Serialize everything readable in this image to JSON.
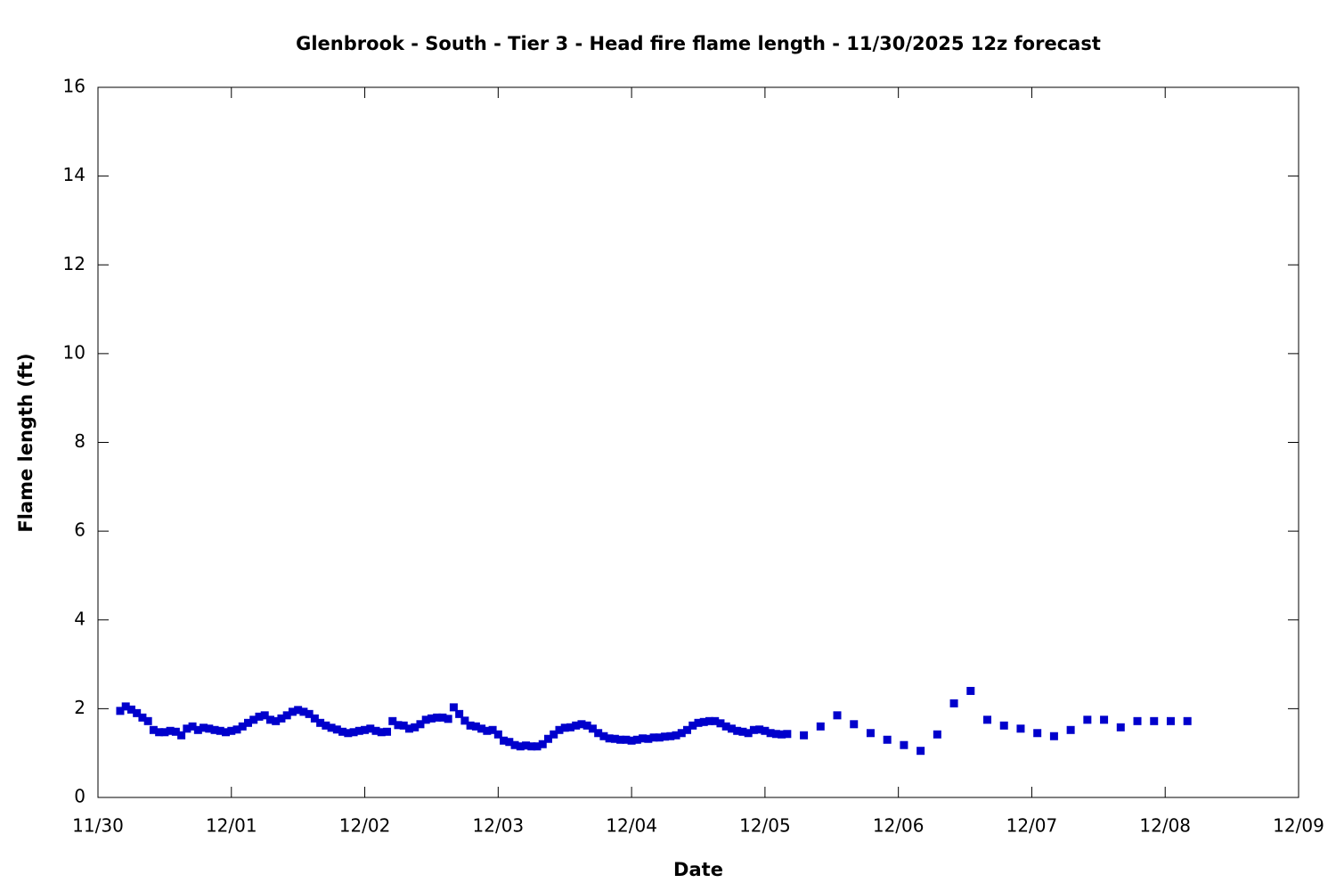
{
  "chart_data": {
    "type": "scatter",
    "title": "Glenbrook - South - Tier 3 - Head fire flame length - 11/30/2025 12z forecast",
    "x_label": "Date",
    "y_label": "Flame length (ft)",
    "color": "#0000cc",
    "x": [
      4,
      5,
      6,
      7,
      8,
      9,
      10,
      11,
      12,
      13,
      14,
      15,
      16,
      17,
      18,
      19,
      20,
      21,
      22,
      23,
      24,
      25,
      26,
      27,
      28,
      29,
      30,
      31,
      32,
      33,
      34,
      35,
      36,
      37,
      38,
      39,
      40,
      41,
      42,
      43,
      44,
      45,
      46,
      47,
      48,
      49,
      50,
      51,
      52,
      53,
      54,
      55,
      56,
      57,
      58,
      59,
      60,
      61,
      62,
      63,
      64,
      65,
      66,
      67,
      68,
      69,
      70,
      71,
      72,
      73,
      74,
      75,
      76,
      77,
      78,
      79,
      80,
      81,
      82,
      83,
      84,
      85,
      86,
      87,
      88,
      89,
      90,
      91,
      92,
      93,
      94,
      95,
      96,
      97,
      98,
      99,
      100,
      101,
      102,
      103,
      104,
      105,
      106,
      107,
      108,
      109,
      110,
      111,
      112,
      113,
      114,
      115,
      116,
      117,
      118,
      119,
      120,
      121,
      122,
      123,
      124,
      127,
      130,
      133,
      136,
      139,
      142,
      145,
      148,
      151,
      154,
      157,
      160,
      163,
      166,
      169,
      172,
      175,
      178,
      181,
      184,
      187,
      190,
      193,
      196
    ],
    "values": [
      1.95,
      2.05,
      1.98,
      1.9,
      1.8,
      1.72,
      1.52,
      1.47,
      1.47,
      1.5,
      1.48,
      1.4,
      1.55,
      1.6,
      1.52,
      1.57,
      1.55,
      1.52,
      1.5,
      1.47,
      1.5,
      1.53,
      1.6,
      1.68,
      1.75,
      1.82,
      1.85,
      1.75,
      1.72,
      1.78,
      1.85,
      1.93,
      1.97,
      1.93,
      1.88,
      1.78,
      1.68,
      1.62,
      1.57,
      1.53,
      1.48,
      1.45,
      1.47,
      1.5,
      1.52,
      1.55,
      1.5,
      1.47,
      1.48,
      1.72,
      1.63,
      1.62,
      1.55,
      1.58,
      1.65,
      1.75,
      1.78,
      1.8,
      1.8,
      1.77,
      2.03,
      1.88,
      1.73,
      1.62,
      1.6,
      1.55,
      1.5,
      1.52,
      1.42,
      1.28,
      1.25,
      1.18,
      1.15,
      1.17,
      1.15,
      1.15,
      1.2,
      1.32,
      1.42,
      1.52,
      1.57,
      1.58,
      1.62,
      1.65,
      1.62,
      1.55,
      1.45,
      1.38,
      1.33,
      1.32,
      1.3,
      1.3,
      1.28,
      1.3,
      1.33,
      1.32,
      1.35,
      1.35,
      1.37,
      1.38,
      1.4,
      1.45,
      1.52,
      1.62,
      1.68,
      1.7,
      1.72,
      1.72,
      1.67,
      1.6,
      1.55,
      1.5,
      1.48,
      1.45,
      1.52,
      1.53,
      1.5,
      1.45,
      1.43,
      1.42,
      1.43,
      1.4,
      1.6,
      1.85,
      1.65,
      1.45,
      1.3,
      1.18,
      1.05,
      1.42,
      2.12,
      2.4,
      1.75,
      1.62,
      1.55,
      1.45,
      1.38,
      1.52,
      1.75,
      1.75,
      1.58,
      1.72,
      1.72,
      1.72,
      1.72
    ],
    "xlim": [
      0,
      216
    ],
    "xticks": [
      {
        "value": 0,
        "label": "11/30"
      },
      {
        "value": 24,
        "label": "12/01"
      },
      {
        "value": 48,
        "label": "12/02"
      },
      {
        "value": 72,
        "label": "12/03"
      },
      {
        "value": 96,
        "label": "12/04"
      },
      {
        "value": 120,
        "label": "12/05"
      },
      {
        "value": 144,
        "label": "12/06"
      },
      {
        "value": 168,
        "label": "12/07"
      },
      {
        "value": 192,
        "label": "12/08"
      },
      {
        "value": 216,
        "label": "12/09"
      }
    ],
    "ylim": [
      0,
      16
    ],
    "yticks": [
      0,
      2,
      4,
      6,
      8,
      10,
      12,
      14,
      16
    ],
    "grid": false
  }
}
